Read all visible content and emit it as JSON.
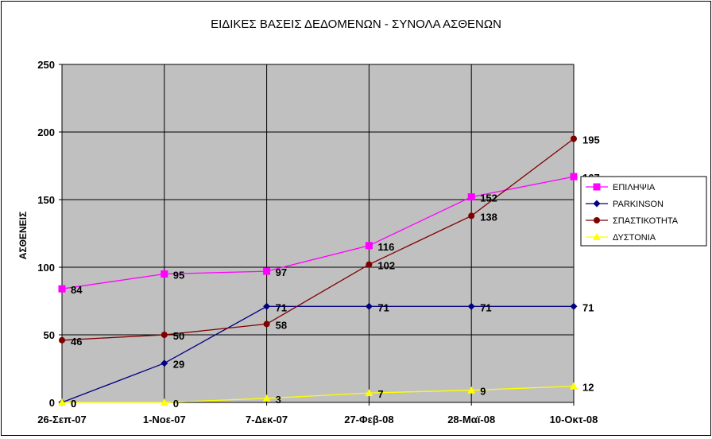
{
  "chart_data": {
    "type": "line",
    "title": "ΕΙΔΙΚΕΣ ΒΑΣΕΙΣ ΔΕΔΟΜΕΝΩΝ - ΣΥΝΟΛΑ ΑΣΘΕΝΩΝ",
    "xlabel": "",
    "ylabel": "ΑΣΘΕΝΕΙΣ",
    "categories": [
      "26-Σεπ-07",
      "1-Νοε-07",
      "7-Δεκ-07",
      "27-Φεβ-08",
      "28-Μαϊ-08",
      "10-Οκτ-08"
    ],
    "ylim": [
      0,
      250
    ],
    "yticks": [
      0,
      50,
      100,
      150,
      200,
      250
    ],
    "grid": true,
    "legend": "right",
    "plot_background": "#c0c0c0",
    "series": [
      {
        "name": "ΕΠΙΛΗΨΙΑ",
        "values": [
          84,
          95,
          97,
          116,
          152,
          167
        ],
        "color": "#ff00ff",
        "marker": "square"
      },
      {
        "name": "PARKINSON",
        "values": [
          0,
          29,
          71,
          71,
          71,
          71
        ],
        "color": "#000080",
        "marker": "diamond"
      },
      {
        "name": "ΣΠΑΣΤΙΚΟΤΗΤΑ",
        "values": [
          46,
          50,
          58,
          102,
          138,
          195
        ],
        "color": "#800000",
        "marker": "circle"
      },
      {
        "name": "ΔΥΣΤΟΝΙΑ",
        "values": [
          0,
          0,
          3,
          7,
          9,
          12
        ],
        "color": "#ffff00",
        "marker": "triangle"
      }
    ],
    "data_labels": {
      "ΕΠΙΛΗΨΙΑ": [
        "84",
        "95",
        "97",
        "116",
        "152",
        "167"
      ],
      "PARKINSON": [
        "0",
        "29",
        "71",
        "71",
        "71",
        "71"
      ],
      "ΣΠΑΣΤΙΚΟΤΗΤΑ": [
        "46",
        "50",
        "58",
        "102",
        "138",
        "195"
      ],
      "ΔΥΣΤΟΝΙΑ": [
        "0",
        "0",
        "3",
        "7",
        "9",
        "12"
      ]
    }
  }
}
